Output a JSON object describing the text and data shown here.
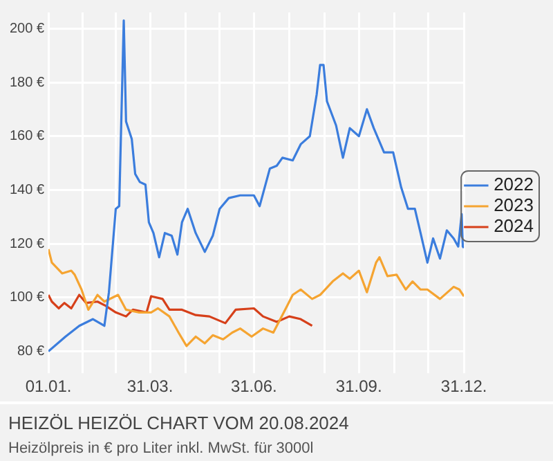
{
  "chart_data": {
    "type": "line",
    "title": "HEIZÖL HEIZÖL CHART VOM 20.08.2024",
    "subtitle": "Heizölpreis in € pro Liter inkl. MwSt. für 3000l",
    "series": [
      {
        "name": "2022",
        "color": "#3b7ddd",
        "x": [
          "--01-01",
          "--01-16",
          "--01-28",
          "--02-09",
          "--02-19",
          "--02-23",
          "--03-01",
          "--03-04",
          "--03-08",
          "--03-10",
          "--03-15",
          "--03-18",
          "--03-22",
          "--03-27",
          "--03-30",
          "--04-03",
          "--04-08",
          "--04-13",
          "--04-19",
          "--04-24",
          "--04-28",
          "--05-03",
          "--05-10",
          "--05-18",
          "--05-25",
          "--05-31",
          "--06-08",
          "--06-18",
          "--06-26",
          "--06-30",
          "--07-05",
          "--07-14",
          "--07-20",
          "--07-25",
          "--08-03",
          "--08-10",
          "--08-18",
          "--08-24",
          "--08-27",
          "--08-30",
          "--09-02",
          "--09-10",
          "--09-16",
          "--09-22",
          "--09-30",
          "--10-07",
          "--10-13",
          "--10-22",
          "--10-30",
          "--11-06",
          "--11-12",
          "--11-18",
          "--11-23",
          "--11-29",
          "--12-04",
          "--12-10",
          "--12-16",
          "--12-22",
          "--12-26",
          "--12-29",
          "--12-30",
          "--12-31"
        ],
        "values": [
          80,
          85.5,
          89.5,
          92,
          89.5,
          102,
          133,
          134,
          203,
          165.5,
          159,
          146,
          143,
          142,
          128,
          124,
          115,
          124,
          123,
          116,
          128,
          133,
          124,
          117,
          123,
          133,
          137,
          138,
          138,
          138,
          134,
          148,
          149,
          152,
          151,
          157,
          160,
          175.5,
          186.5,
          186.5,
          173,
          164,
          152,
          163,
          160,
          170,
          163,
          154,
          154,
          141,
          133,
          133,
          124,
          113,
          122,
          114.5,
          125,
          122,
          119,
          131,
          119,
          118.5
        ]
      },
      {
        "name": "2023",
        "color": "#f5a431",
        "x": [
          "--01-01",
          "--01-04",
          "--01-13",
          "--01-21",
          "--01-24",
          "--01-30",
          "--02-05",
          "--02-13",
          "--02-19",
          "--03-03",
          "--03-10",
          "--03-21",
          "--04-01",
          "--04-07",
          "--04-17",
          "--04-25",
          "--05-02",
          "--05-10",
          "--05-18",
          "--05-25",
          "--06-03",
          "--06-11",
          "--06-18",
          "--06-28",
          "--07-08",
          "--07-17",
          "--07-28",
          "--08-03",
          "--08-10",
          "--08-20",
          "--08-27",
          "--09-07",
          "--09-16",
          "--09-22",
          "--09-30",
          "--10-07",
          "--10-15",
          "--10-18",
          "--10-25",
          "--11-02",
          "--11-10",
          "--11-16",
          "--11-23",
          "--11-29",
          "--12-10",
          "--12-22",
          "--12-27",
          "--12-31"
        ],
        "values": [
          118,
          113,
          109,
          110,
          108.5,
          103,
          95.5,
          101,
          98.5,
          101,
          95.5,
          94.5,
          94.5,
          96,
          93,
          87,
          82,
          85.5,
          83,
          86,
          84.5,
          87,
          88.5,
          85.5,
          88.5,
          87,
          96,
          101,
          103,
          99.5,
          101,
          106,
          109,
          107,
          110,
          102,
          113,
          115,
          108,
          108.5,
          103,
          106,
          103,
          103,
          99.5,
          104,
          103,
          100.5
        ]
      },
      {
        "name": "2024",
        "color": "#d6401a",
        "x": [
          "--01-01",
          "--01-04",
          "--01-10",
          "--01-15",
          "--01-21",
          "--01-28",
          "--02-03",
          "--02-13",
          "--02-20",
          "--03-01",
          "--03-10",
          "--03-16",
          "--03-28",
          "--04-01",
          "--04-11",
          "--04-17",
          "--04-28",
          "--05-10",
          "--05-22",
          "--06-05",
          "--06-14",
          "--06-30",
          "--07-08",
          "--07-20",
          "--07-31",
          "--08-10",
          "--08-20"
        ],
        "values": [
          101,
          98.5,
          96,
          98,
          96,
          101,
          98,
          98.5,
          97,
          94.5,
          93,
          95.5,
          94.5,
          100.5,
          99.5,
          95.5,
          95.5,
          93.5,
          93,
          90.5,
          95.5,
          96,
          93,
          91,
          93,
          92,
          89.5
        ]
      }
    ],
    "xlim": [
      "--01-01",
      "--12-31"
    ],
    "xticks": [
      {
        "value": "--01-01",
        "label": "01.01."
      },
      {
        "value": "--01-31",
        "label": null
      },
      {
        "value": "--03-01",
        "label": null
      },
      {
        "value": "--03-31",
        "label": "31.03."
      },
      {
        "value": "--05-01",
        "label": null
      },
      {
        "value": "--05-31",
        "label": null
      },
      {
        "value": "--06-30",
        "label": "31.06."
      },
      {
        "value": "--07-31",
        "label": null
      },
      {
        "value": "--08-31",
        "label": null
      },
      {
        "value": "--09-30",
        "label": "31.09."
      },
      {
        "value": "--10-31",
        "label": null
      },
      {
        "value": "--11-30",
        "label": null
      },
      {
        "value": "--12-31",
        "label": "31.12."
      }
    ],
    "ylim": [
      76,
      206
    ],
    "yticks": [
      {
        "value": 80,
        "label": "80 €"
      },
      {
        "value": 100,
        "label": "100 €"
      },
      {
        "value": 120,
        "label": "120 €"
      },
      {
        "value": 140,
        "label": "140 €"
      },
      {
        "value": 160,
        "label": "160 €"
      },
      {
        "value": 180,
        "label": "180 €"
      },
      {
        "value": 200,
        "label": "200 €"
      }
    ],
    "grid": true,
    "legend": "right",
    "marker": "none",
    "line_style": "solid"
  }
}
